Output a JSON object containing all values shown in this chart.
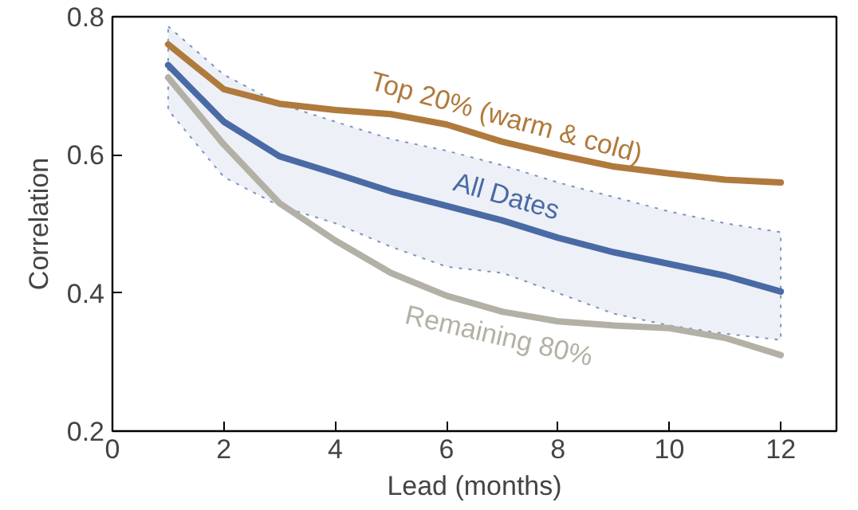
{
  "chart_data": {
    "type": "line",
    "xlabel": "Lead (months)",
    "ylabel": "Correlation",
    "x": [
      1,
      2,
      3,
      4,
      5,
      6,
      7,
      8,
      9,
      10,
      11,
      12
    ],
    "xlim": [
      0,
      13
    ],
    "xticks": [
      0,
      2,
      4,
      6,
      8,
      10,
      12
    ],
    "ylim": [
      0.2,
      0.8
    ],
    "yticks": [
      0.2,
      0.4,
      0.6,
      0.8
    ],
    "grid": false,
    "marker": "none",
    "line_style": "solid",
    "series": [
      {
        "name": "Top 20% (warm & cold)",
        "color": "#b07a3c",
        "values": [
          0.76,
          0.695,
          0.674,
          0.665,
          0.659,
          0.644,
          0.619,
          0.6,
          0.583,
          0.573,
          0.564,
          0.56
        ]
      },
      {
        "name": "All Dates",
        "color": "#4a6aa5",
        "values": [
          0.73,
          0.648,
          0.598,
          0.573,
          0.547,
          0.526,
          0.505,
          0.48,
          0.459,
          0.442,
          0.425,
          0.402
        ],
        "lower": [
          0.665,
          0.568,
          0.526,
          0.501,
          0.467,
          0.438,
          0.429,
          0.4,
          0.37,
          0.353,
          0.341,
          0.332
        ],
        "upper": [
          0.786,
          0.716,
          0.674,
          0.648,
          0.623,
          0.606,
          0.585,
          0.56,
          0.539,
          0.518,
          0.501,
          0.488
        ]
      },
      {
        "name": "Remaining 80%",
        "color": "#b3b0a6",
        "values": [
          0.712,
          0.615,
          0.53,
          0.476,
          0.429,
          0.396,
          0.373,
          0.359,
          0.353,
          0.349,
          0.335,
          0.31
        ]
      }
    ]
  }
}
